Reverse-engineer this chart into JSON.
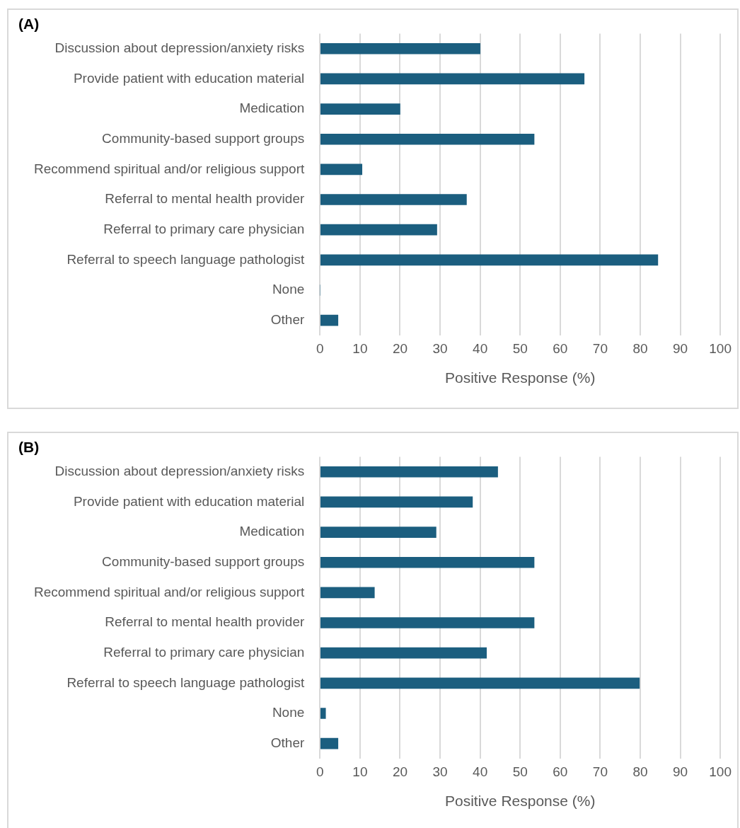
{
  "chart_data": [
    {
      "type": "bar",
      "title": "(A)",
      "orientation": "horizontal",
      "categories": [
        "Discussion about depression/anxiety risks",
        "Provide patient with education material",
        "Medication",
        "Community-based support groups",
        "Recommend spiritual and/or religious support",
        "Referral to mental health provider",
        "Referral to primary care physician",
        "Referral to speech language pathologist",
        "None",
        "Other"
      ],
      "values": [
        40,
        66,
        20,
        53.5,
        10.5,
        36.6,
        29.2,
        84.4,
        0,
        4.5
      ],
      "color": "#1b5e7f",
      "xlim": [
        0,
        100
      ],
      "xticks": [
        0,
        10,
        20,
        30,
        40,
        50,
        60,
        70,
        80,
        90,
        100
      ],
      "xlabel": "Positive Response (%)",
      "grid": "x"
    },
    {
      "type": "bar",
      "title": "(B)",
      "orientation": "horizontal",
      "categories": [
        "Discussion about depression/anxiety risks",
        "Provide patient with education material",
        "Medication",
        "Community-based support groups",
        "Recommend spiritual and/or religious support",
        "Referral to mental health provider",
        "Referral to primary care physician",
        "Referral to speech language pathologist",
        "None",
        "Other"
      ],
      "values": [
        44.4,
        38.1,
        29,
        53.5,
        13.6,
        53.5,
        41.6,
        79.8,
        1.4,
        4.5
      ],
      "color": "#1b5e7f",
      "xlim": [
        0,
        100
      ],
      "xticks": [
        0,
        10,
        20,
        30,
        40,
        50,
        60,
        70,
        80,
        90,
        100
      ],
      "xlabel": "Positive Response (%)",
      "grid": "x"
    }
  ]
}
